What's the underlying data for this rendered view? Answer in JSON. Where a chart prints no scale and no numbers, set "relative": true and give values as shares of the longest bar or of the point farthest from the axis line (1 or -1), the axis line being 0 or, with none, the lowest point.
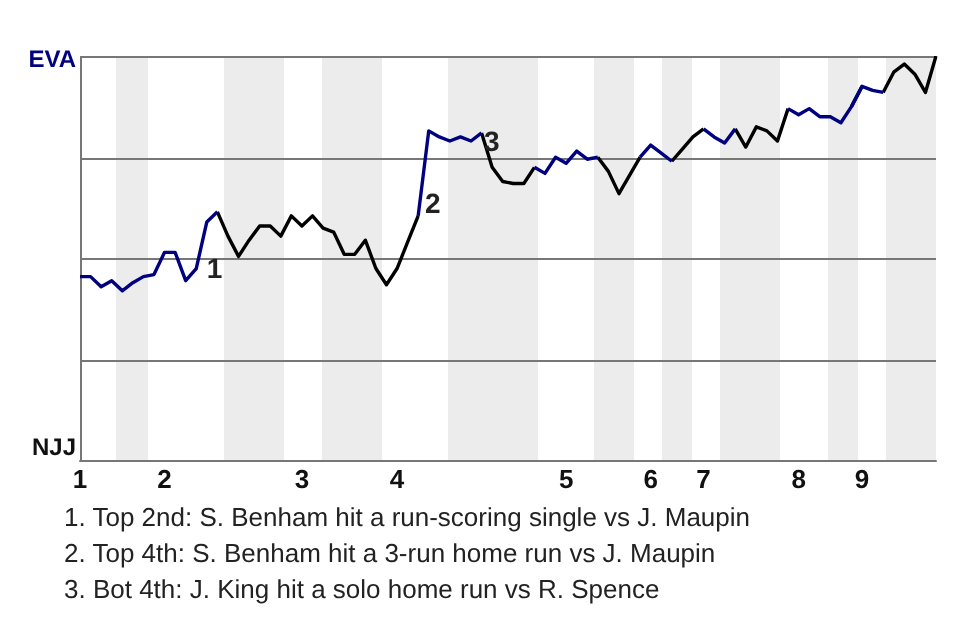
{
  "chart_data": {
    "type": "line",
    "relative": true,
    "categories": [
      "1",
      null,
      null,
      null,
      null,
      null,
      null,
      null,
      "2",
      null,
      null,
      null,
      null,
      null,
      null,
      null,
      null,
      null,
      null,
      null,
      null,
      "3",
      null,
      null,
      null,
      null,
      null,
      null,
      null,
      null,
      "4",
      null,
      null,
      null,
      null,
      null,
      null,
      null,
      null,
      null,
      null,
      null,
      null,
      null,
      null,
      null,
      "5",
      null,
      null,
      null,
      null,
      null,
      null,
      null,
      "6",
      null,
      null,
      null,
      null,
      "7",
      null,
      null,
      null,
      null,
      null,
      null,
      null,
      null,
      "8",
      null,
      null,
      null,
      null,
      null,
      "9",
      null,
      null,
      null,
      null,
      null,
      null,
      null
    ],
    "series": [
      {
        "color": "#000080",
        "values": [
          0.455,
          0.455,
          0.43,
          0.445,
          0.42,
          0.44,
          0.455,
          0.46,
          0.515,
          0.515,
          0.445,
          0.475,
          0.59,
          0.615,
          null,
          null,
          null,
          null,
          null,
          null,
          null,
          null,
          null,
          null,
          null,
          null,
          null,
          null,
          null,
          null,
          null,
          null,
          0.605,
          0.815,
          0.8,
          0.79,
          0.8,
          0.79,
          0.81,
          null,
          null,
          null,
          null,
          0.725,
          0.71,
          0.75,
          0.735,
          0.765,
          0.745,
          0.75,
          null,
          null,
          null,
          0.75,
          0.78,
          0.76,
          0.74,
          null,
          null,
          0.82,
          0.8,
          0.785,
          0.82,
          null,
          null,
          null,
          null,
          0.87,
          0.855,
          0.87,
          0.85,
          0.85,
          0.835,
          0.875,
          0.925,
          0.915,
          0.91,
          null,
          null,
          null,
          null,
          null
        ]
      },
      {
        "color": "#000000",
        "values": [
          null,
          null,
          null,
          null,
          null,
          null,
          null,
          null,
          null,
          null,
          null,
          null,
          null,
          0.615,
          0.555,
          0.505,
          0.545,
          0.58,
          0.58,
          0.555,
          0.605,
          0.58,
          0.605,
          0.575,
          0.565,
          0.51,
          0.51,
          0.545,
          0.475,
          0.435,
          0.475,
          0.54,
          0.605,
          null,
          null,
          null,
          null,
          null,
          0.81,
          0.725,
          0.69,
          0.685,
          0.685,
          0.725,
          null,
          null,
          null,
          null,
          null,
          0.75,
          0.715,
          0.66,
          0.705,
          0.75,
          null,
          null,
          0.74,
          0.77,
          0.8,
          0.82,
          null,
          null,
          0.82,
          0.775,
          0.825,
          0.815,
          0.79,
          0.87,
          null,
          null,
          null,
          null,
          null,
          0.875,
          0.925,
          null,
          0.91,
          0.96,
          0.98,
          0.955,
          0.91,
          1
        ]
      }
    ],
    "grid": true,
    "legend": false,
    "marker": "none",
    "line_style": "solid",
    "annotations": [
      "EVA",
      "NJJ",
      "1",
      "2",
      "3",
      "1. Top 2nd: S. Benham hit a run-scoring single vs J. Maupin",
      "2. Top 4th: S. Benham hit a 3-run home run vs J. Maupin",
      "3. Bot 4th: J. King hit a solo home run vs R. Spence"
    ]
  }
}
